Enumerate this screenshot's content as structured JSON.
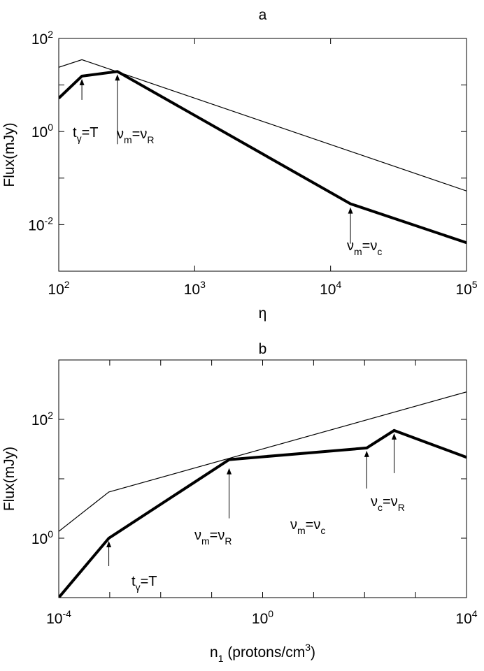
{
  "chart_data": [
    {
      "type": "line",
      "title": "a",
      "xlabel": "η",
      "ylabel": "Flux(mJy)",
      "xscale": "log",
      "yscale": "log",
      "xlim": [
        100,
        100000
      ],
      "ylim": [
        0.001,
        100
      ],
      "xticks": [
        {
          "value": 100,
          "base": "10",
          "exp": "2"
        },
        {
          "value": 1000,
          "base": "10",
          "exp": "3"
        },
        {
          "value": 10000,
          "base": "10",
          "exp": "4"
        },
        {
          "value": 100000,
          "base": "10",
          "exp": "5"
        }
      ],
      "yticks": [
        {
          "value": 0.01,
          "base": "10",
          "exp": "-2"
        },
        {
          "value": 1,
          "base": "10",
          "exp": "0"
        },
        {
          "value": 100,
          "base": "10",
          "exp": "2"
        }
      ],
      "series": [
        {
          "style": "thin",
          "x": [
            100,
            148,
            100000
          ],
          "y": [
            24,
            35,
            0.053
          ]
        },
        {
          "style": "thick",
          "x": [
            100,
            148,
            270,
            14000,
            100000
          ],
          "y": [
            5.2,
            15.5,
            19.5,
            0.028,
            0.0041
          ]
        }
      ],
      "annotations": [
        {
          "parts": [
            [
              "t",
              ""
            ],
            [
              "γ",
              "sub"
            ],
            [
              "=T",
              ""
            ]
          ],
          "arrow_x": 148,
          "arrow_y": 15.5
        },
        {
          "parts": [
            [
              "ν",
              ""
            ],
            [
              "m",
              "sub"
            ],
            [
              "=ν",
              ""
            ],
            [
              "R",
              "sub"
            ]
          ],
          "arrow_x": 270,
          "arrow_y": 19.5
        },
        {
          "parts": [
            [
              "ν",
              ""
            ],
            [
              "m",
              "sub"
            ],
            [
              "=ν",
              ""
            ],
            [
              "c",
              "sub"
            ]
          ],
          "arrow_x": 14000,
          "arrow_y": 0.028
        }
      ]
    },
    {
      "type": "line",
      "title": "b",
      "xlabel": "n₁ (protons/cm³)",
      "xlabel_parts": [
        [
          "n",
          ""
        ],
        [
          "1",
          "sub"
        ],
        [
          " (protons/cm",
          ""
        ],
        [
          "3",
          "sup"
        ],
        [
          ")",
          ""
        ]
      ],
      "ylabel": "Flux(mJy)",
      "xscale": "log",
      "yscale": "log",
      "xlim": [
        0.0001,
        10000
      ],
      "ylim": [
        0.1,
        1000
      ],
      "xticks": [
        {
          "value": 0.0001,
          "base": "10",
          "exp": "-4"
        },
        {
          "value": 1,
          "base": "10",
          "exp": "0"
        },
        {
          "value": 10000,
          "base": "10",
          "exp": "4"
        }
      ],
      "yticks": [
        {
          "value": 1,
          "base": "10",
          "exp": "0"
        },
        {
          "value": 100,
          "base": "10",
          "exp": "2"
        }
      ],
      "series": [
        {
          "style": "thin",
          "x": [
            0.0001,
            0.00096,
            10000
          ],
          "y": [
            1.3,
            6.0,
            290
          ]
        },
        {
          "style": "thick",
          "x": [
            0.0001,
            0.00096,
            0.22,
            110,
            380,
            10000
          ],
          "y": [
            0.1,
            1.0,
            21,
            33,
            65,
            23
          ]
        }
      ],
      "annotations": [
        {
          "parts": [
            [
              "t",
              ""
            ],
            [
              "γ",
              "sub"
            ],
            [
              "=T",
              ""
            ]
          ],
          "arrow_x": 0.00096,
          "arrow_y": 1.0
        },
        {
          "parts": [
            [
              "ν",
              ""
            ],
            [
              "m",
              "sub"
            ],
            [
              "=ν",
              ""
            ],
            [
              "R",
              "sub"
            ]
          ],
          "arrow_x": 0.22,
          "arrow_y": 21
        },
        {
          "parts": [
            [
              "ν",
              ""
            ],
            [
              "m",
              "sub"
            ],
            [
              "=ν",
              ""
            ],
            [
              "c",
              "sub"
            ]
          ],
          "arrow_x": 110,
          "arrow_y": 33
        },
        {
          "parts": [
            [
              "ν",
              ""
            ],
            [
              "c",
              "sub"
            ],
            [
              "=ν",
              ""
            ],
            [
              "R",
              "sub"
            ]
          ],
          "arrow_x": 380,
          "arrow_y": 65
        }
      ]
    }
  ]
}
